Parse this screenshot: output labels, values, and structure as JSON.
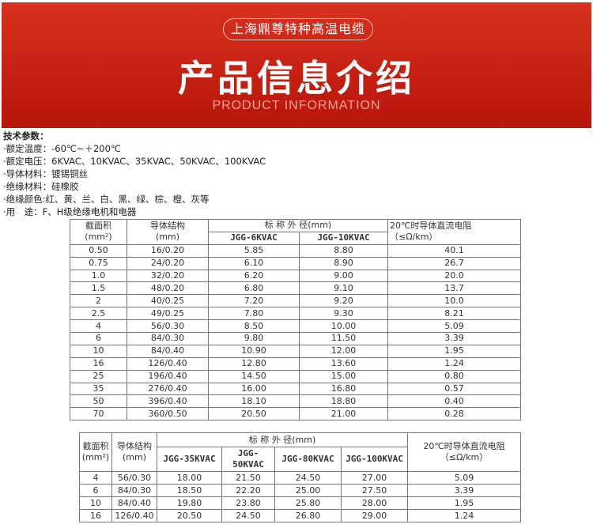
{
  "banner": {
    "company": "上海鼎尊特种高温电缆",
    "title": "产品信息介绍",
    "subtitle": "PRODUCT INFORMATION"
  },
  "specs": {
    "heading": "技术参数：",
    "lines": [
      "·额定温度：-60℃~＋200℃",
      "·额定电压：6KVAC、10KVAC、35KVAC、50KVAC、100KVAC",
      "·导体材料：镀锡铜丝",
      "·绝缘材料：硅橡胶",
      "·绝缘颜色:红、黄、兰、白、黑、绿、棕、橙、灰等",
      "·用　途：F、H级绝缘电机和电器"
    ]
  },
  "table1": {
    "h_area": "截面积",
    "h_area_unit": "(mm²)",
    "h_struct": "导体结构",
    "h_struct_unit": "(mm)",
    "h_od": "标 称 外 径(mm)",
    "h_res": "20℃时导体直流电阻",
    "h_res_unit": "（≤Ω/km）",
    "h_models": [
      "JGG-6KVAC",
      "JGG-10KVAC"
    ],
    "rows": [
      [
        "0.50",
        "16/0.20",
        "5.85",
        "8.80",
        "40.1"
      ],
      [
        "0.75",
        "24/0.20",
        "6.10",
        "8.90",
        "26.7"
      ],
      [
        "1.0",
        "32/0.20",
        "6.20",
        "9.00",
        "20.0"
      ],
      [
        "1.5",
        "48/0.20",
        "6.80",
        "9.10",
        "13.7"
      ],
      [
        "2",
        "40/0.25",
        "7.20",
        "9.20",
        "10.0"
      ],
      [
        "2.5",
        "49/0.25",
        "7.80",
        "9.30",
        "8.21"
      ],
      [
        "4",
        "56/0.30",
        "8.50",
        "10.00",
        "5.09"
      ],
      [
        "6",
        "84/0.30",
        "9.80",
        "11.50",
        "3.39"
      ],
      [
        "10",
        "84/0.40",
        "10.90",
        "12.00",
        "1.95"
      ],
      [
        "16",
        "126/0.40",
        "12.80",
        "13.60",
        "1.24"
      ],
      [
        "25",
        "196/0.40",
        "14.50",
        "15.00",
        "0.80"
      ],
      [
        "35",
        "276/0.40",
        "16.00",
        "16.80",
        "0.57"
      ],
      [
        "50",
        "396/0.40",
        "18.10",
        "18.80",
        "0.40"
      ],
      [
        "70",
        "360/0.50",
        "20.50",
        "21.00",
        "0.28"
      ]
    ]
  },
  "table2": {
    "h_area": "截面积",
    "h_area_unit": "(mm²)",
    "h_struct": "导体结构",
    "h_struct_unit": "(mm)",
    "h_od": "标 称 外 径(mm)",
    "h_res": "20℃时导体直流电阻",
    "h_res_unit": "（≤Ω/km）",
    "h_models": [
      "JGG-35KVAC",
      "JGG-50KVAC",
      "JGG-80KVAC",
      "JGG-100KVAC"
    ],
    "rows": [
      [
        "4",
        "56/0.30",
        "18.00",
        "21.50",
        "24.50",
        "27.00",
        "5.09"
      ],
      [
        "6",
        "84/0.30",
        "18.50",
        "22.20",
        "25.00",
        "27.50",
        "3.39"
      ],
      [
        "10",
        "84/0.40",
        "19.80",
        "23.80",
        "25.80",
        "28.00",
        "1.95"
      ],
      [
        "16",
        "126/0.40",
        "20.50",
        "24.50",
        "26.80",
        "29.00",
        "1.24"
      ]
    ]
  }
}
